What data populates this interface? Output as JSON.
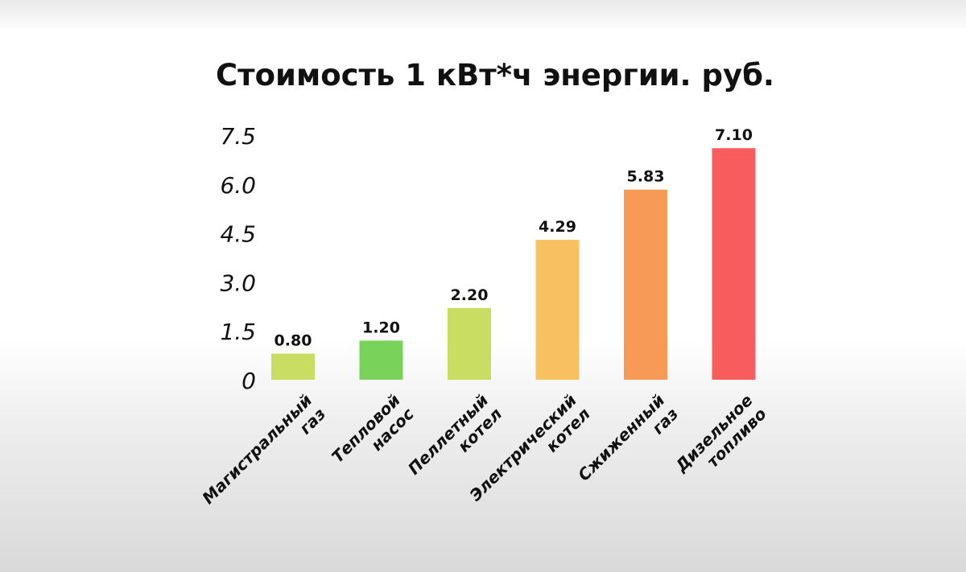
{
  "chart_data": {
    "type": "bar",
    "title": "Стоимость 1 кВт*ч энергии. руб.",
    "xlabel": "",
    "ylabel": "",
    "ylim": [
      0,
      7.5
    ],
    "yticks": [
      "0",
      "1.5",
      "3.0",
      "4.5",
      "6.0",
      "7.5"
    ],
    "ytick_values": [
      0,
      1.5,
      3.0,
      4.5,
      6.0,
      7.5
    ],
    "grid": false,
    "categories": [
      [
        "Магистральный",
        "газ"
      ],
      [
        "Тепловой",
        "насос"
      ],
      [
        "Пеллетный",
        "котел"
      ],
      [
        "Электрический",
        "котел"
      ],
      [
        "Сжиженный",
        "газ"
      ],
      [
        "Дизельное",
        "топливо"
      ]
    ],
    "values": [
      0.8,
      1.2,
      2.2,
      4.29,
      5.83,
      7.1
    ],
    "value_labels": [
      "0.80",
      "1.20",
      "2.20",
      "4.29",
      "5.83",
      "7.10"
    ],
    "colors": [
      "#c9dd63",
      "#79d35a",
      "#c9dd63",
      "#f8c061",
      "#f79a56",
      "#f85c5c"
    ]
  }
}
